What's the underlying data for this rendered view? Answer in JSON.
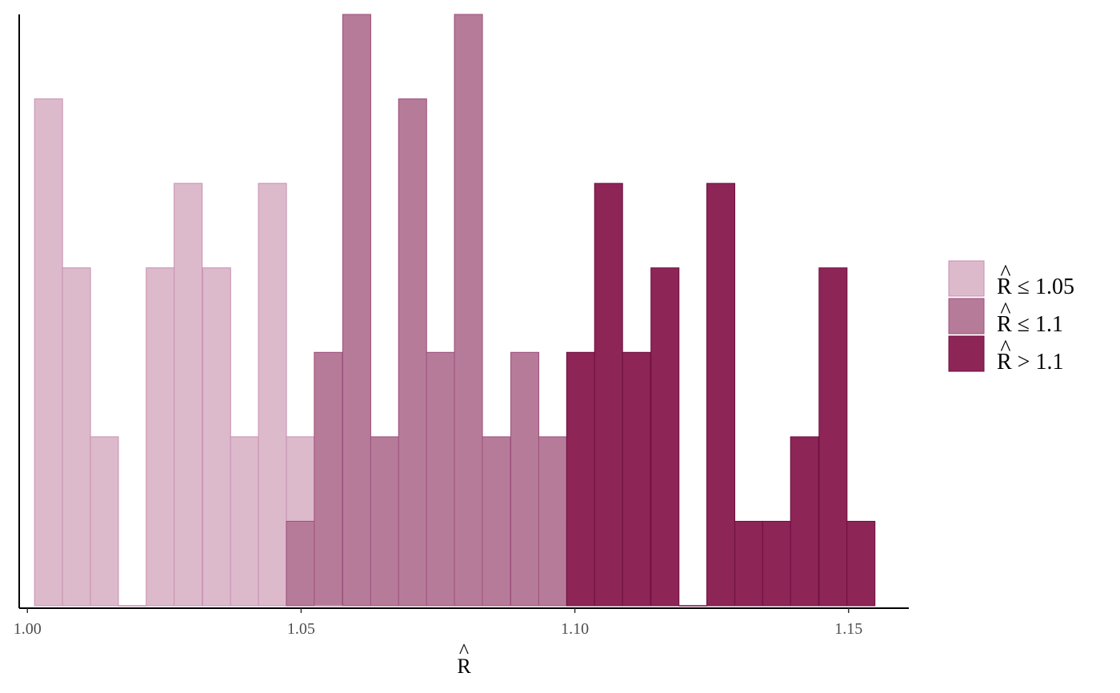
{
  "chart_data": {
    "type": "bar",
    "xlabel": "R",
    "xlabel_hat": "^",
    "xlim": [
      0.9985,
      1.161
    ],
    "ylim": [
      0,
      7
    ],
    "x_ticks": [
      1.0,
      1.05,
      1.1,
      1.15
    ],
    "x_tick_labels": [
      "1.00",
      "1.05",
      "1.10",
      "1.15"
    ],
    "bin_width": 0.00512,
    "y_axis_labels": false,
    "grid": false,
    "legend_position": "right",
    "stacked": true,
    "series": [
      {
        "name": "≤ 1.05",
        "legend_label": "R",
        "legend_suffix": "≤ 1.05",
        "color": "#ddb9cc",
        "stroke": "#c790b0",
        "bins": [
          {
            "x0": 1.0013,
            "count": 6
          },
          {
            "x0": 1.0064,
            "count": 4
          },
          {
            "x0": 1.0115,
            "count": 2
          },
          {
            "x0": 1.0166,
            "count": 0
          },
          {
            "x0": 1.0217,
            "count": 4
          },
          {
            "x0": 1.0268,
            "count": 5
          },
          {
            "x0": 1.032,
            "count": 4
          },
          {
            "x0": 1.0371,
            "count": 2
          },
          {
            "x0": 1.0422,
            "count": 5
          },
          {
            "x0": 1.0473,
            "count": 2
          },
          {
            "x0": 1.0524,
            "count": 0
          }
        ]
      },
      {
        "name": "≤ 1.1",
        "legend_label": "R",
        "legend_suffix": "≤ 1.1",
        "color": "#b77b9a",
        "stroke": "#9c4f7a",
        "bins": [
          {
            "x0": 1.0473,
            "count": 1
          },
          {
            "x0": 1.0524,
            "count": 3
          },
          {
            "x0": 1.0576,
            "count": 7
          },
          {
            "x0": 1.0627,
            "count": 2
          },
          {
            "x0": 1.0678,
            "count": 6
          },
          {
            "x0": 1.0729,
            "count": 3
          },
          {
            "x0": 1.078,
            "count": 7
          },
          {
            "x0": 1.0831,
            "count": 2
          },
          {
            "x0": 1.0883,
            "count": 3
          },
          {
            "x0": 1.0934,
            "count": 2
          },
          {
            "x0": 1.0985,
            "count": 1
          }
        ]
      },
      {
        "name": "> 1.1",
        "legend_label": "R",
        "legend_suffix": "> 1.1",
        "color": "#8d2557",
        "stroke": "#6e0f3e",
        "bins": [
          {
            "x0": 1.0985,
            "count": 3
          },
          {
            "x0": 1.1036,
            "count": 5
          },
          {
            "x0": 1.1087,
            "count": 3
          },
          {
            "x0": 1.1139,
            "count": 4
          },
          {
            "x0": 1.119,
            "count": 0
          },
          {
            "x0": 1.1241,
            "count": 5
          },
          {
            "x0": 1.1292,
            "count": 1
          },
          {
            "x0": 1.1343,
            "count": 1
          },
          {
            "x0": 1.1394,
            "count": 2
          },
          {
            "x0": 1.1446,
            "count": 4
          },
          {
            "x0": 1.1497,
            "count": 1
          }
        ]
      }
    ]
  }
}
